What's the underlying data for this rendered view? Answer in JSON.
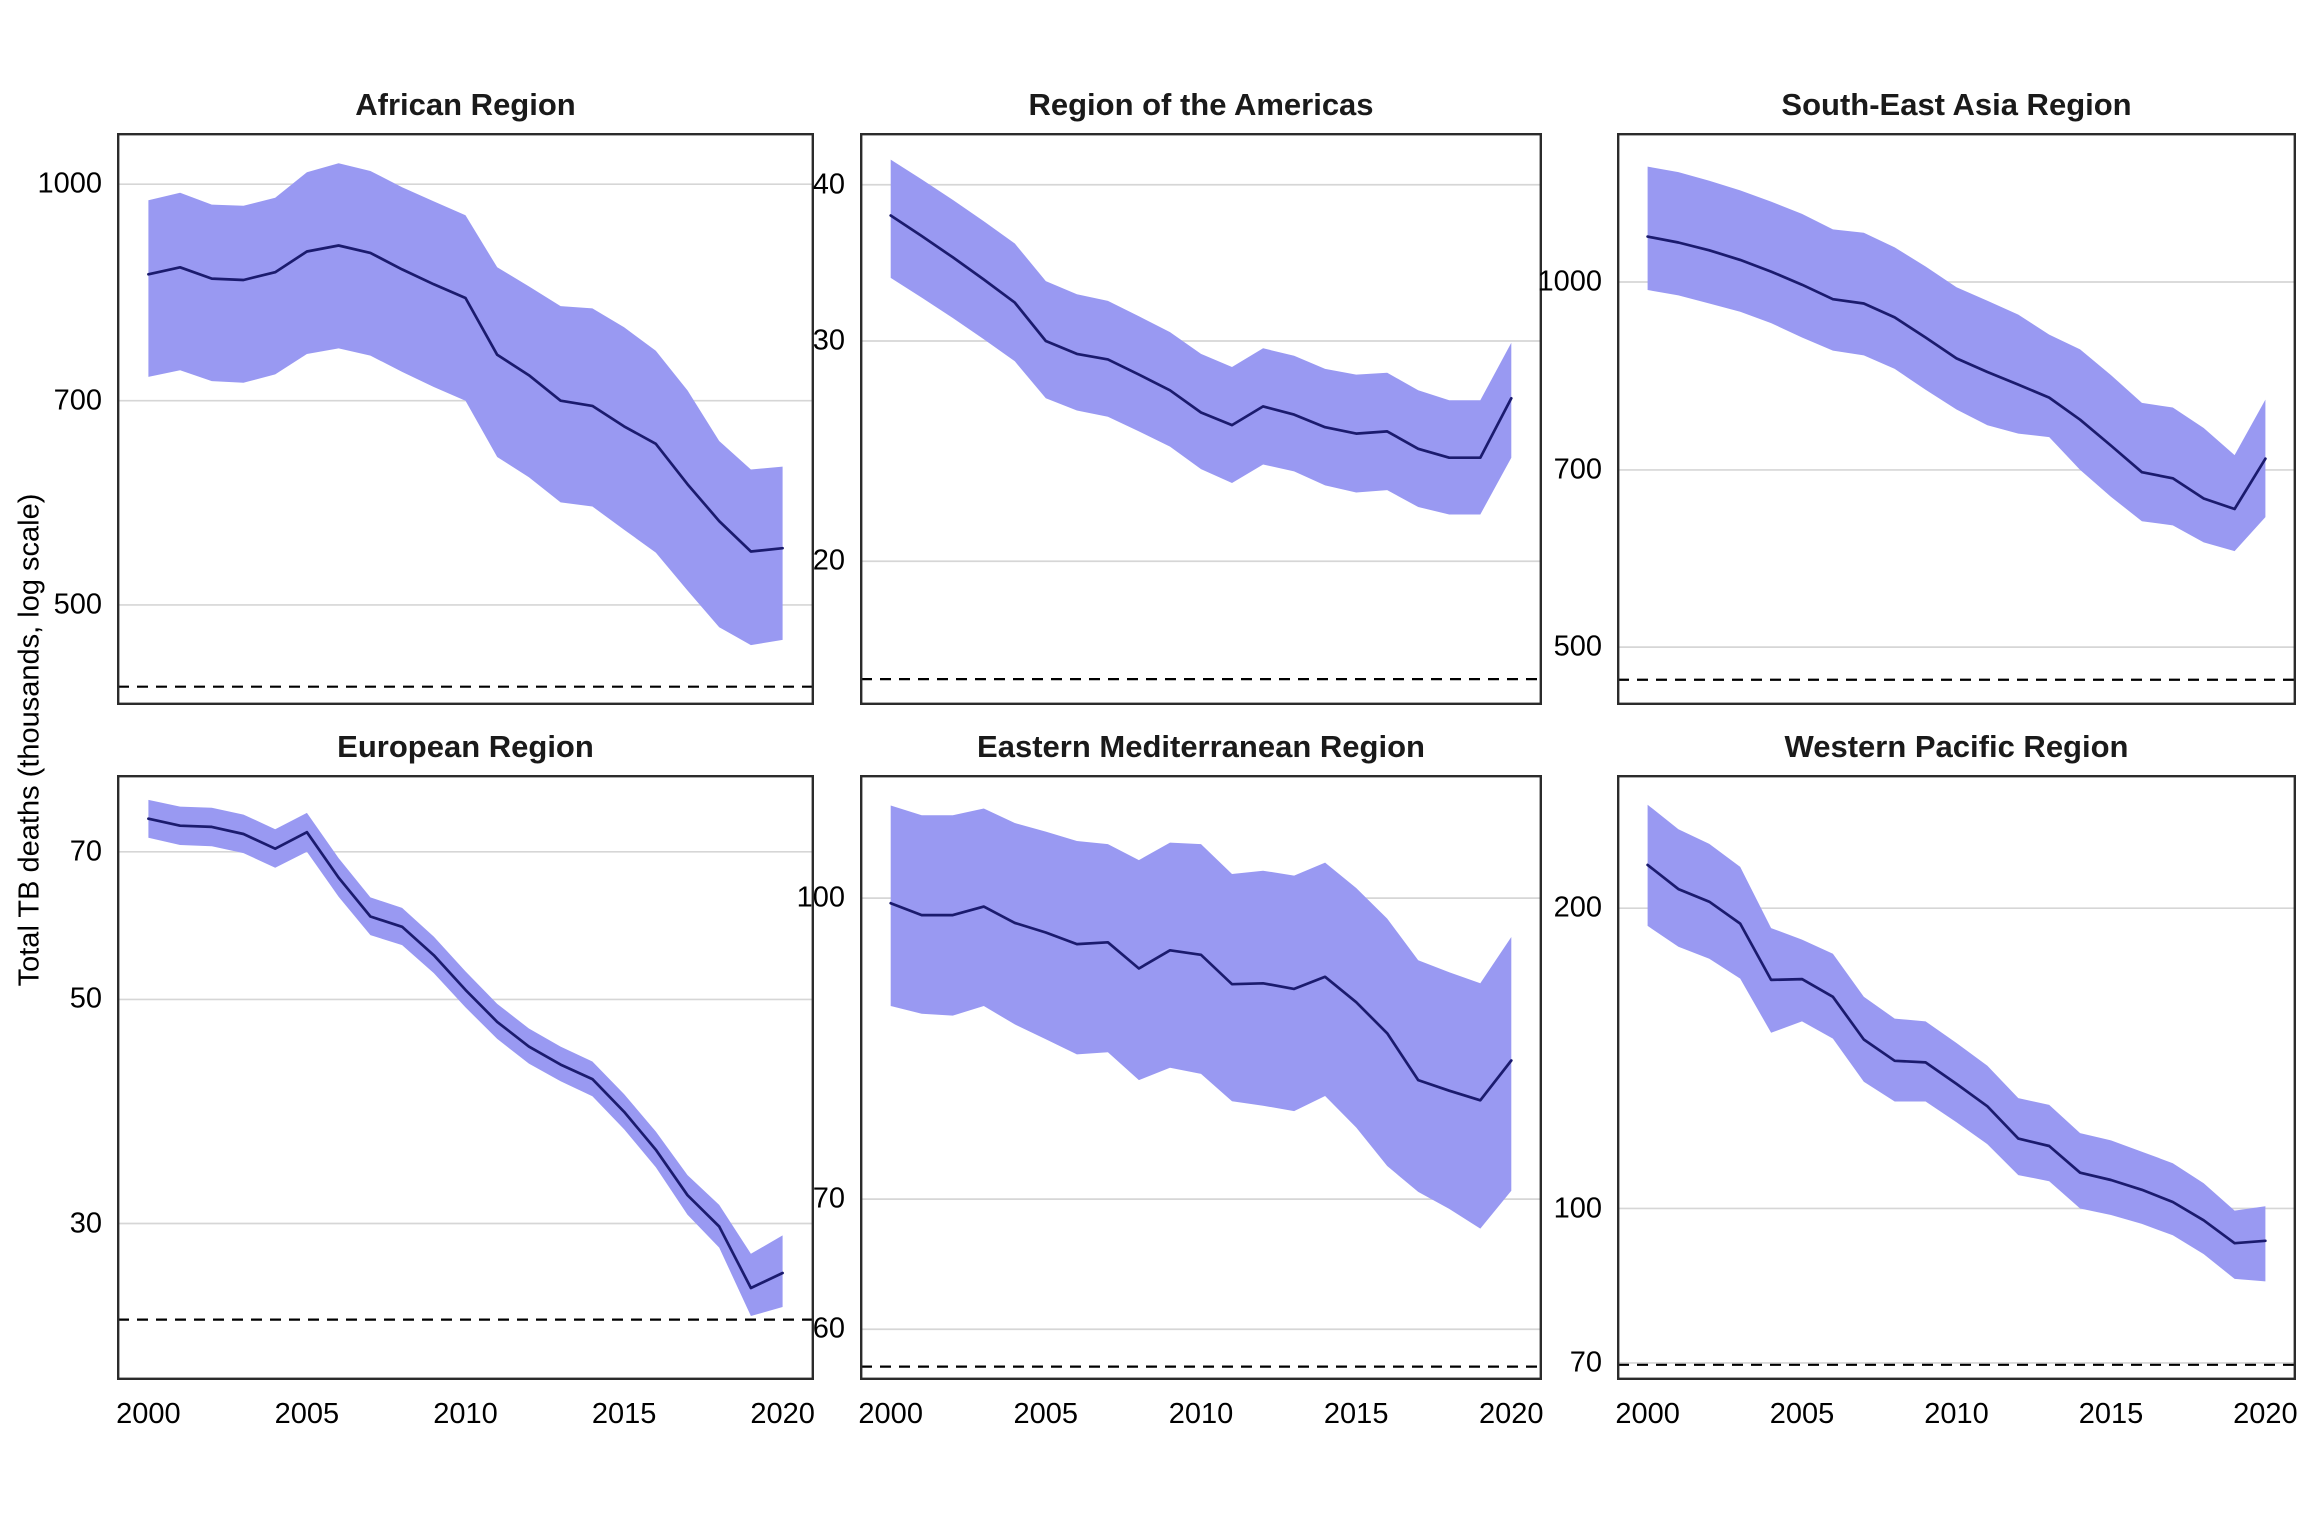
{
  "figure": {
    "y_axis_title": "Total TB deaths (thousands, log scale)",
    "colors": {
      "ribbon": "#9999F2",
      "line": "#1B1B6E",
      "grid": "#D6D6D6",
      "dashed_line": "#000000",
      "panel_border": "#2B2B2B",
      "text": "#000000"
    }
  },
  "chart_data": [
    {
      "type": "line",
      "title": "African Region",
      "x": [
        2000,
        2001,
        2002,
        2003,
        2004,
        2005,
        2006,
        2007,
        2008,
        2009,
        2010,
        2011,
        2012,
        2013,
        2014,
        2015,
        2016,
        2017,
        2018,
        2019,
        2020
      ],
      "series": [
        {
          "name": "best estimate",
          "values": [
            862,
            872,
            856,
            854,
            865,
            895,
            904,
            893,
            869,
            848,
            829,
            755,
            730,
            700,
            694,
            671,
            652,
            610,
            574,
            546,
            549
          ]
        },
        {
          "name": "lower bound",
          "values": [
            728,
            736,
            723,
            721,
            731,
            756,
            763,
            754,
            734,
            716,
            700,
            638,
            617,
            592,
            588,
            566,
            545,
            512,
            482,
            468,
            472
          ]
        },
        {
          "name": "upper bound",
          "values": [
            974,
            986,
            967,
            965,
            978,
            1020,
            1035,
            1022,
            995,
            972,
            950,
            872,
            845,
            818,
            815,
            790,
            760,
            712,
            655,
            625,
            628
          ]
        }
      ],
      "ylog": true,
      "ydomain": [
        424,
        1088
      ],
      "yticks": [
        1000,
        700,
        500
      ],
      "xticks": [
        2000,
        2005,
        2010,
        2015,
        2020
      ],
      "dashed_target": 437,
      "show_x_labels": false
    },
    {
      "type": "line",
      "title": "Region of the Americas",
      "x": [
        2000,
        2001,
        2002,
        2003,
        2004,
        2005,
        2006,
        2007,
        2008,
        2009,
        2010,
        2011,
        2012,
        2013,
        2014,
        2015,
        2016,
        2017,
        2018,
        2019,
        2020
      ],
      "series": [
        {
          "name": "best estimate",
          "values": [
            37.8,
            36.4,
            35.0,
            33.6,
            32.2,
            30.0,
            29.3,
            29.0,
            28.2,
            27.4,
            26.3,
            25.7,
            26.6,
            26.2,
            25.6,
            25.3,
            25.4,
            24.6,
            24.2,
            24.2,
            27.0
          ]
        },
        {
          "name": "lower bound",
          "values": [
            33.7,
            32.5,
            31.3,
            30.1,
            28.9,
            27.0,
            26.4,
            26.1,
            25.4,
            24.7,
            23.7,
            23.1,
            23.9,
            23.6,
            23.0,
            22.7,
            22.8,
            22.1,
            21.8,
            21.8,
            24.2
          ]
        },
        {
          "name": "upper bound",
          "values": [
            41.9,
            40.4,
            38.9,
            37.4,
            35.9,
            33.5,
            32.7,
            32.3,
            31.4,
            30.5,
            29.3,
            28.6,
            29.6,
            29.2,
            28.5,
            28.2,
            28.3,
            27.4,
            26.9,
            26.9,
            29.9
          ]
        }
      ],
      "ylog": true,
      "ydomain": [
        15.35,
        44
      ],
      "yticks": [
        40,
        30,
        20
      ],
      "xticks": [
        2000,
        2005,
        2010,
        2015,
        2020
      ],
      "dashed_target": 16.1,
      "show_x_labels": false
    },
    {
      "type": "line",
      "title": "South-East Asia Region",
      "x": [
        2000,
        2001,
        2002,
        2003,
        2004,
        2005,
        2006,
        2007,
        2008,
        2009,
        2010,
        2011,
        2012,
        2013,
        2014,
        2015,
        2016,
        2017,
        2018,
        2019,
        2020
      ],
      "series": [
        {
          "name": "best estimate",
          "values": [
            1090,
            1078,
            1062,
            1043,
            1020,
            995,
            968,
            960,
            935,
            900,
            865,
            843,
            823,
            803,
            770,
            733,
            697,
            689,
            663,
            650,
            715
          ]
        },
        {
          "name": "lower bound",
          "values": [
            985,
            975,
            960,
            945,
            925,
            900,
            878,
            870,
            848,
            815,
            785,
            762,
            750,
            745,
            700,
            665,
            635,
            630,
            610,
            600,
            640
          ]
        },
        {
          "name": "upper bound",
          "values": [
            1245,
            1232,
            1212,
            1190,
            1165,
            1138,
            1105,
            1098,
            1068,
            1030,
            990,
            965,
            940,
            905,
            880,
            838,
            795,
            788,
            758,
            720,
            800
          ]
        }
      ],
      "ylog": true,
      "ydomain": [
        448,
        1327
      ],
      "yticks": [
        1000,
        700,
        500
      ],
      "xticks": [
        2000,
        2005,
        2010,
        2015,
        2020
      ],
      "dashed_target": 470,
      "show_x_labels": false
    },
    {
      "type": "line",
      "title": "European Region",
      "x": [
        2000,
        2001,
        2002,
        2003,
        2004,
        2005,
        2006,
        2007,
        2008,
        2009,
        2010,
        2011,
        2012,
        2013,
        2014,
        2015,
        2016,
        2017,
        2018,
        2019,
        2020
      ],
      "series": [
        {
          "name": "best estimate",
          "values": [
            75.5,
            74.3,
            74.1,
            72.9,
            70.5,
            73.2,
            66.0,
            60.4,
            59.0,
            55.3,
            51.1,
            47.5,
            44.9,
            43.1,
            41.7,
            38.7,
            35.5,
            32.0,
            29.8,
            25.9,
            26.8
          ]
        },
        {
          "name": "lower bound",
          "values": [
            72.3,
            71.1,
            70.9,
            69.8,
            67.5,
            70.0,
            63.2,
            57.9,
            56.6,
            53.1,
            49.1,
            45.7,
            43.2,
            41.5,
            40.1,
            37.2,
            34.1,
            30.6,
            28.4,
            24.3,
            24.8
          ]
        },
        {
          "name": "upper bound",
          "values": [
            78.8,
            77.6,
            77.4,
            76.2,
            73.7,
            76.5,
            69.0,
            63.1,
            61.6,
            57.7,
            53.3,
            49.5,
            46.8,
            44.9,
            43.4,
            40.3,
            37.0,
            33.5,
            31.3,
            28.0,
            29.2
          ]
        }
      ],
      "ylog": true,
      "ydomain": [
        21.0,
        83.4
      ],
      "yticks": [
        70,
        50,
        30
      ],
      "xticks": [
        2000,
        2005,
        2010,
        2015,
        2020
      ],
      "dashed_target": 24.1,
      "show_x_labels": true
    },
    {
      "type": "line",
      "title": "Eastern Mediterranean Region",
      "x": [
        2000,
        2001,
        2002,
        2003,
        2004,
        2005,
        2006,
        2007,
        2008,
        2009,
        2010,
        2011,
        2012,
        2013,
        2014,
        2015,
        2016,
        2017,
        2018,
        2019,
        2020
      ],
      "series": [
        {
          "name": "best estimate",
          "values": [
            99.4,
            98.0,
            98.0,
            99.0,
            97.1,
            96.0,
            94.7,
            94.9,
            92.0,
            94.0,
            93.5,
            90.3,
            90.4,
            89.8,
            91.1,
            88.4,
            85.2,
            80.6,
            79.6,
            78.7,
            82.5
          ]
        },
        {
          "name": "lower bound",
          "values": [
            88.0,
            87.2,
            87.0,
            88.0,
            86.1,
            84.6,
            83.1,
            83.3,
            80.6,
            81.8,
            81.2,
            78.6,
            78.2,
            77.7,
            79.1,
            76.2,
            72.8,
            70.6,
            69.2,
            67.6,
            70.7
          ]
        },
        {
          "name": "upper bound",
          "values": [
            111.6,
            110.3,
            110.3,
            111.2,
            109.3,
            108.2,
            107.0,
            106.6,
            104.6,
            106.8,
            106.6,
            102.9,
            103.3,
            102.7,
            104.3,
            101.2,
            97.6,
            92.9,
            91.6,
            90.4,
            95.5
          ]
        }
      ],
      "ylog": true,
      "ydomain": [
        56.5,
        115.7
      ],
      "yticks": [
        100,
        70,
        60
      ],
      "xticks": [
        2000,
        2005,
        2010,
        2015,
        2020
      ],
      "dashed_target": 57.4,
      "show_x_labels": true
    },
    {
      "type": "line",
      "title": "Western Pacific Region",
      "x": [
        2000,
        2001,
        2002,
        2003,
        2004,
        2005,
        2006,
        2007,
        2008,
        2009,
        2010,
        2011,
        2012,
        2013,
        2014,
        2015,
        2016,
        2017,
        2018,
        2019,
        2020
      ],
      "series": [
        {
          "name": "best estimate",
          "values": [
            221,
            209,
            203,
            193,
            169.5,
            169.8,
            163,
            147.7,
            140.6,
            140.1,
            133.3,
            126.6,
            117.5,
            115.5,
            108.6,
            106.8,
            104.4,
            101.5,
            97.3,
            92.3,
            92.8
          ]
        },
        {
          "name": "lower bound",
          "values": [
            192,
            183,
            178,
            170,
            150,
            154,
            148,
            134,
            128,
            128,
            122,
            116,
            108,
            106.5,
            100,
            98.5,
            96.5,
            94,
            90,
            85,
            84.5
          ]
        },
        {
          "name": "upper bound",
          "values": [
            254,
            240,
            232,
            220,
            191,
            186,
            180,
            163,
            155,
            154,
            146.5,
            139,
            129,
            127,
            119,
            117,
            114,
            111,
            106,
            99.5,
            100.5
          ]
        }
      ],
      "ylog": true,
      "ydomain": [
        67.3,
        272
      ],
      "yticks": [
        200,
        100,
        70
      ],
      "xticks": [
        2000,
        2005,
        2010,
        2015,
        2020
      ],
      "dashed_target": 69.7,
      "show_x_labels": true
    }
  ]
}
